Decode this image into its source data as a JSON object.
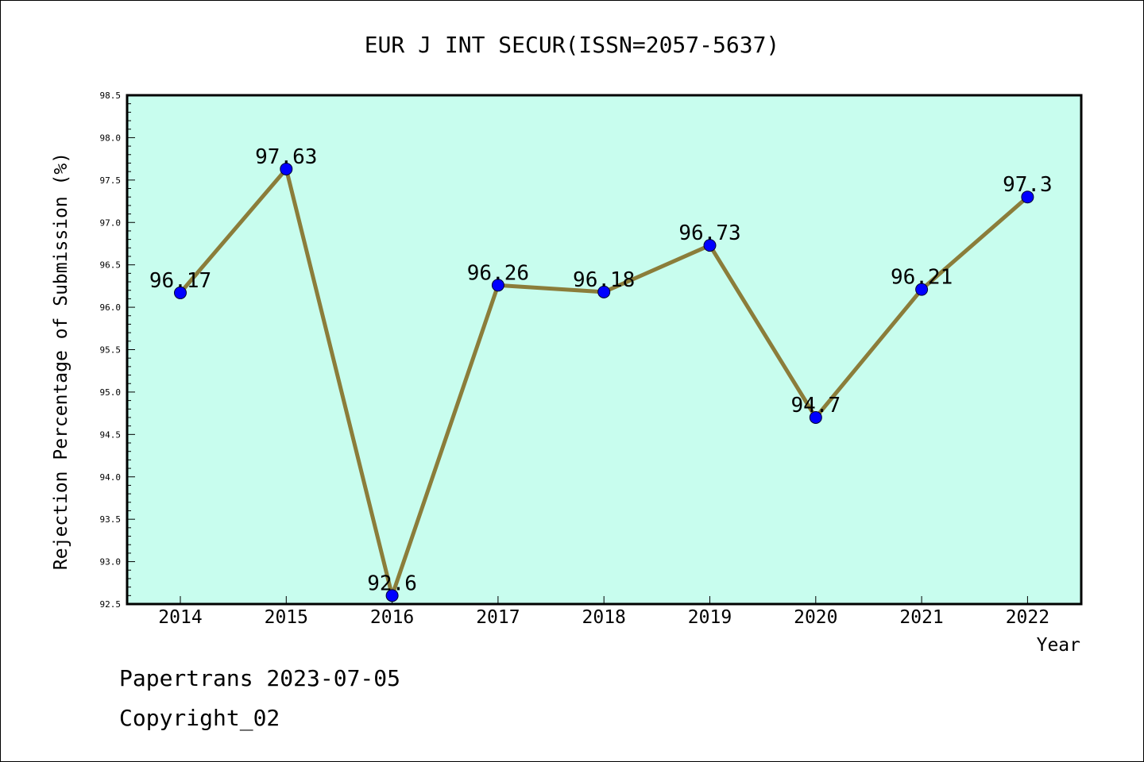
{
  "chart_data": {
    "type": "line",
    "title": "EUR J INT SECUR(ISSN=2057-5637)",
    "xlabel": "Year",
    "ylabel": "Rejection Percentage of Submission (%)",
    "categories": [
      "2014",
      "2015",
      "2016",
      "2017",
      "2018",
      "2019",
      "2020",
      "2021",
      "2022"
    ],
    "series": [
      {
        "values": [
          96.17,
          97.63,
          92.6,
          96.26,
          96.18,
          96.73,
          94.7,
          96.21,
          97.3
        ],
        "labels": [
          "96.17",
          "97.63",
          "92.6",
          "96.26",
          "96.18",
          "96.73",
          "94.7",
          "96.21",
          "97.3"
        ]
      }
    ],
    "ylim": [
      92.5,
      98.5
    ],
    "yticks": [
      "92.5",
      "93.0",
      "93.5",
      "94.0",
      "94.5",
      "95.0",
      "95.5",
      "96.0",
      "96.5",
      "97.0",
      "97.5",
      "98.0",
      "98.5"
    ],
    "grid": false,
    "colors": {
      "plot_background": "#c8fdee",
      "line": "#8b7d3a",
      "marker": "#0000ff"
    }
  },
  "footer": {
    "line1": "Papertrans 2023-07-05",
    "line2": "Copyright_02"
  }
}
